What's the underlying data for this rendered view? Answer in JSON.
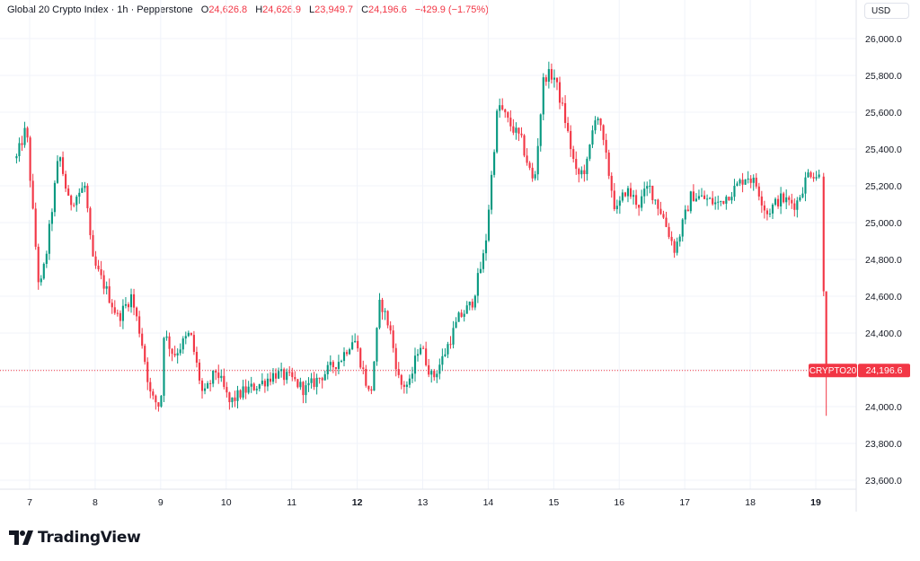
{
  "header": {
    "symbol": "Global 20 Crypto Index · 1h · Pepperstone",
    "open_label": "O",
    "open": "24,626.8",
    "high_label": "H",
    "high": "24,626.9",
    "low_label": "L",
    "low": "23,949.7",
    "close_label": "C",
    "close": "24,196.6",
    "change": "−429.9 (−1.75%)"
  },
  "currency": "USD",
  "price_tag": {
    "ticker": "CRYPTO20",
    "price": "24,196.6"
  },
  "logo_text": "TradingView",
  "colors": {
    "up": "#089981",
    "down": "#f23645",
    "grid": "#f0f3fa",
    "text": "#131722"
  },
  "chart_data": {
    "type": "candlestick",
    "interval": "1h",
    "ylim": [
      23550,
      26150
    ],
    "y_ticks": [
      {
        "value": 26000,
        "label": "26,000.0"
      },
      {
        "value": 25800,
        "label": "25,800.0"
      },
      {
        "value": 25600,
        "label": "25,600.0"
      },
      {
        "value": 25400,
        "label": "25,400.0"
      },
      {
        "value": 25200,
        "label": "25,200.0"
      },
      {
        "value": 25000,
        "label": "25,000.0"
      },
      {
        "value": 24800,
        "label": "24,800.0"
      },
      {
        "value": 24600,
        "label": "24,600.0"
      },
      {
        "value": 24400,
        "label": "24,400.0"
      },
      {
        "value": 24200,
        "label": "24,200.0"
      },
      {
        "value": 24000,
        "label": "24,000.0"
      },
      {
        "value": 23800,
        "label": "23,800.0"
      },
      {
        "value": 23600,
        "label": "23,600.0"
      }
    ],
    "x_ticks": [
      {
        "day": 7,
        "label": "7",
        "bold": false
      },
      {
        "day": 8,
        "label": "8",
        "bold": false
      },
      {
        "day": 9,
        "label": "9",
        "bold": false
      },
      {
        "day": 10,
        "label": "10",
        "bold": false
      },
      {
        "day": 11,
        "label": "11",
        "bold": false
      },
      {
        "day": 12,
        "label": "12",
        "bold": true
      },
      {
        "day": 13,
        "label": "13",
        "bold": false
      },
      {
        "day": 14,
        "label": "14",
        "bold": false
      },
      {
        "day": 15,
        "label": "15",
        "bold": false
      },
      {
        "day": 16,
        "label": "16",
        "bold": false
      },
      {
        "day": 17,
        "label": "17",
        "bold": false
      },
      {
        "day": 18,
        "label": "18",
        "bold": false
      },
      {
        "day": 19,
        "label": "19",
        "bold": true
      }
    ],
    "last_price": 24196.6,
    "close_path": [
      [
        6.8,
        25350
      ],
      [
        6.95,
        25520
      ],
      [
        7.05,
        25050
      ],
      [
        7.15,
        24620
      ],
      [
        7.25,
        24820
      ],
      [
        7.45,
        25380
      ],
      [
        7.6,
        25100
      ],
      [
        7.85,
        25200
      ],
      [
        7.95,
        24800
      ],
      [
        8.15,
        24650
      ],
      [
        8.35,
        24480
      ],
      [
        8.55,
        24600
      ],
      [
        8.7,
        24380
      ],
      [
        8.85,
        24050
      ],
      [
        9.0,
        24000
      ],
      [
        9.05,
        24400
      ],
      [
        9.2,
        24280
      ],
      [
        9.45,
        24400
      ],
      [
        9.65,
        24050
      ],
      [
        9.85,
        24200
      ],
      [
        10.05,
        24020
      ],
      [
        10.25,
        24080
      ],
      [
        10.5,
        24120
      ],
      [
        10.75,
        24180
      ],
      [
        11.0,
        24150
      ],
      [
        11.2,
        24090
      ],
      [
        11.5,
        24180
      ],
      [
        11.75,
        24260
      ],
      [
        11.95,
        24380
      ],
      [
        12.1,
        24180
      ],
      [
        12.2,
        24040
      ],
      [
        12.35,
        24580
      ],
      [
        12.5,
        24420
      ],
      [
        12.65,
        24120
      ],
      [
        12.8,
        24120
      ],
      [
        12.95,
        24350
      ],
      [
        13.15,
        24150
      ],
      [
        13.3,
        24260
      ],
      [
        13.55,
        24480
      ],
      [
        13.75,
        24560
      ],
      [
        13.95,
        24850
      ],
      [
        14.15,
        25650
      ],
      [
        14.3,
        25550
      ],
      [
        14.5,
        25450
      ],
      [
        14.7,
        25200
      ],
      [
        14.85,
        25800
      ],
      [
        15.0,
        25800
      ],
      [
        15.15,
        25600
      ],
      [
        15.35,
        25250
      ],
      [
        15.5,
        25300
      ],
      [
        15.65,
        25620
      ],
      [
        15.8,
        25350
      ],
      [
        15.95,
        25050
      ],
      [
        16.1,
        25180
      ],
      [
        16.3,
        25100
      ],
      [
        16.45,
        25200
      ],
      [
        16.65,
        25050
      ],
      [
        16.85,
        24850
      ],
      [
        17.1,
        25150
      ],
      [
        17.3,
        25130
      ],
      [
        17.5,
        25100
      ],
      [
        17.75,
        25180
      ],
      [
        17.95,
        25260
      ],
      [
        18.1,
        25200
      ],
      [
        18.25,
        25050
      ],
      [
        18.45,
        25130
      ],
      [
        18.7,
        25100
      ],
      [
        18.9,
        25280
      ],
      [
        19.05,
        25250
      ],
      [
        19.1,
        24620
      ],
      [
        19.15,
        24196.6
      ]
    ]
  }
}
